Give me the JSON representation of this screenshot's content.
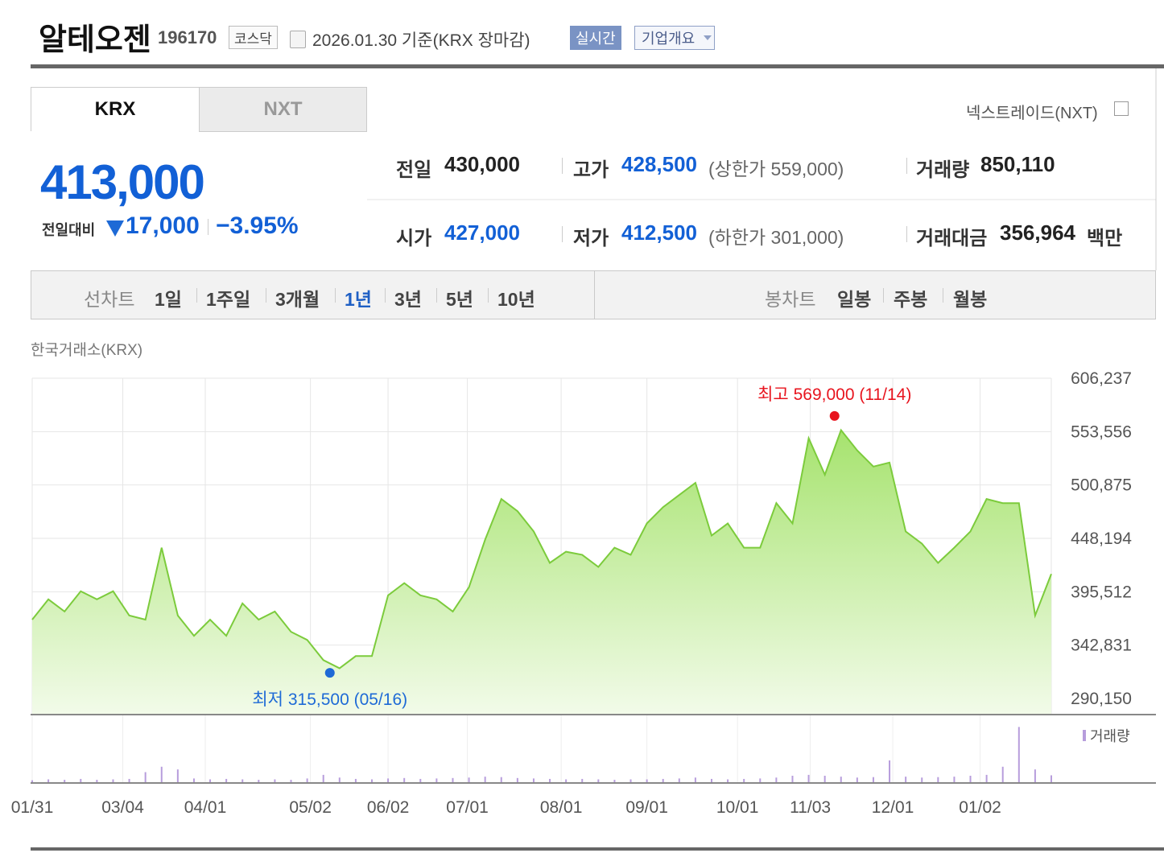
{
  "header": {
    "name": "알테오젠",
    "code": "196170",
    "market": "코스닥",
    "date_note": "2026.01.30 기준(KRX 장마감)",
    "realtime": "실시간",
    "company": "기업개요"
  },
  "tabs": [
    "KRX",
    "NXT"
  ],
  "nxt_link": "넥스트레이드(NXT)",
  "quote": {
    "price": "413,000",
    "change_label": "전일대비",
    "change": "17,000",
    "change_rate": "−3.95%"
  },
  "stats": [
    {
      "label": "전일",
      "value": "430,000"
    },
    {
      "label": "고가",
      "value": "428,500",
      "note": "(상한가 559,000)"
    },
    {
      "label": "거래량",
      "value": "850,110"
    },
    {
      "label": "시가",
      "value": "427,000"
    },
    {
      "label": "저가",
      "value": "412,500",
      "note": "(하한가 301,000)"
    },
    {
      "label": "거래대금",
      "value": "356,964",
      "unit": "백만"
    }
  ],
  "period_tabs": {
    "line_label": "선차트",
    "line": [
      "1일",
      "1주일",
      "3개월",
      "1년",
      "3년",
      "5년",
      "10년"
    ],
    "candle_label": "봉차트",
    "candle": [
      "일봉",
      "주봉",
      "월봉"
    ]
  },
  "chart_data": {
    "type": "area",
    "source": "한국거래소(KRX)",
    "color": "#7ccb3c",
    "values": [
      368000,
      388000,
      376000,
      396000,
      388000,
      396000,
      372000,
      368000,
      439000,
      372000,
      352000,
      368000,
      352000,
      384000,
      368000,
      376000,
      356000,
      348000,
      328000,
      320000,
      332000,
      332000,
      392000,
      404000,
      392000,
      388000,
      376000,
      400000,
      447000,
      487000,
      475000,
      455000,
      424000,
      435000,
      432000,
      420000,
      439000,
      432000,
      463000,
      479000,
      491000,
      503000,
      451000,
      463000,
      439000,
      439000,
      483000,
      463000,
      547000,
      511000,
      555000,
      535000,
      519000,
      523000,
      455000,
      443000,
      424000,
      439000,
      455000,
      487000,
      483000,
      483000,
      372000,
      413000
    ],
    "xlim": [
      0,
      63
    ],
    "xticks": [
      {
        "value": 0,
        "label": "01/31"
      },
      {
        "value": 5.6,
        "label": "03/04"
      },
      {
        "value": 10.7,
        "label": "04/01"
      },
      {
        "value": 17.2,
        "label": "05/02"
      },
      {
        "value": 22,
        "label": "06/02"
      },
      {
        "value": 26.9,
        "label": "07/01"
      },
      {
        "value": 32.7,
        "label": "08/01"
      },
      {
        "value": 38,
        "label": "09/01"
      },
      {
        "value": 43.6,
        "label": "10/01"
      },
      {
        "value": 48.1,
        "label": "11/03"
      },
      {
        "value": 53.2,
        "label": "12/01"
      },
      {
        "value": 58.6,
        "label": "01/02"
      }
    ],
    "ylim": [
      274266,
      606237
    ],
    "yticks": [
      {
        "value": 290150,
        "label": "290,150"
      },
      {
        "value": 342831,
        "label": "342,831"
      },
      {
        "value": 395512,
        "label": "395,512"
      },
      {
        "value": 448194,
        "label": "448,194"
      },
      {
        "value": 500875,
        "label": "500,875"
      },
      {
        "value": 553556,
        "label": "553,556"
      },
      {
        "value": 606237,
        "label": "606,237"
      }
    ],
    "grid": true,
    "annotations": [
      {
        "label": "최고 569,000 (11/14)",
        "value": 569000,
        "x": 49.6,
        "color": "#e8141e",
        "position": "above"
      },
      {
        "label": "최저 315,500 (05/16)",
        "value": 315500,
        "x": 18.4,
        "color": "#1e6ad6",
        "position": "below"
      }
    ],
    "volume": {
      "name": "거래량",
      "color": "#b79ddc",
      "ylim": [
        0,
        6500000
      ],
      "values": [
        300000,
        400000,
        350000,
        450000,
        350000,
        400000,
        450000,
        1200000,
        1800000,
        1500000,
        500000,
        400000,
        450000,
        400000,
        350000,
        400000,
        350000,
        500000,
        900000,
        600000,
        450000,
        400000,
        500000,
        550000,
        450000,
        500000,
        550000,
        600000,
        700000,
        650000,
        550000,
        500000,
        450000,
        400000,
        450000,
        400000,
        350000,
        400000,
        400000,
        450000,
        500000,
        600000,
        450000,
        400000,
        450000,
        500000,
        600000,
        800000,
        900000,
        800000,
        700000,
        600000,
        650000,
        2500000,
        700000,
        600000,
        650000,
        700000,
        800000,
        900000,
        1800000,
        6200000,
        1500000,
        850110
      ]
    }
  }
}
